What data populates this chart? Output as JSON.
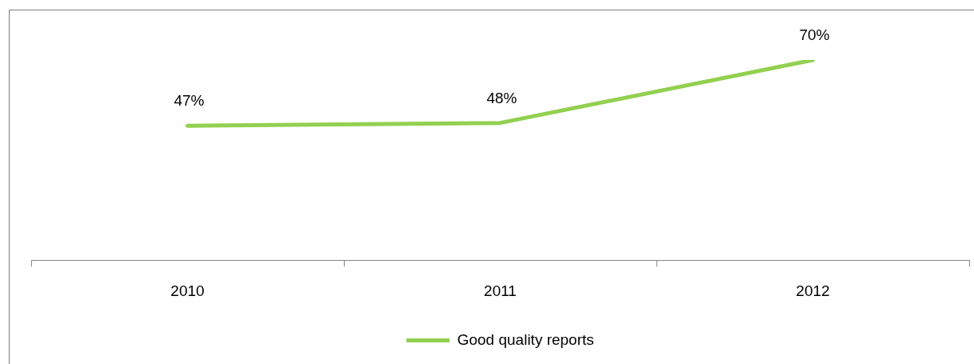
{
  "chart_data": {
    "type": "line",
    "categories": [
      "2010",
      "2011",
      "2012"
    ],
    "series": [
      {
        "name": "Good quality reports",
        "color": "#92d050",
        "values": [
          47,
          48,
          70
        ],
        "value_labels": [
          "47%",
          "48%",
          "70%"
        ]
      }
    ],
    "tick_labels": "x",
    "legend": "bottom",
    "marker": "none",
    "line_style": "solid"
  }
}
